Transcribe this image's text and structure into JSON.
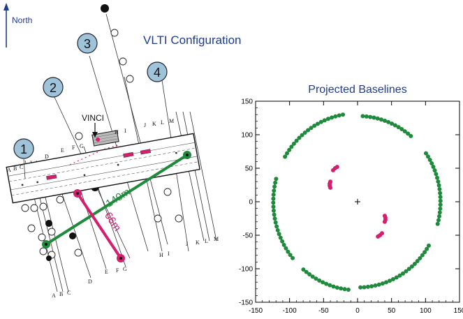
{
  "north_label": "North",
  "title": "VLTI Configuration",
  "vinci_label": "VINCI",
  "chart_title": "Projected Baselines",
  "baseline_long": "140m",
  "baseline_short": "66m",
  "unit_numbers": [
    "1",
    "2",
    "3",
    "4"
  ],
  "rail_letters_top": [
    "A",
    "B",
    "C",
    "D",
    "E",
    "F",
    "G",
    "H",
    "I",
    "J",
    "K",
    "L",
    "M"
  ],
  "rail_letters_bottom": [
    "A",
    "B",
    "C",
    "D",
    "E",
    "F",
    "G",
    "H",
    "I",
    "J",
    "K",
    "L",
    "M"
  ],
  "colors": {
    "title_blue": "#1f3b8c",
    "unit_fill": "#9fc4da",
    "green": "#1f8a3c",
    "magenta": "#d61e6e"
  },
  "chart_data": {
    "type": "scatter",
    "title": "Projected Baselines",
    "xlim": [
      -150,
      150
    ],
    "ylim": [
      -150,
      150
    ],
    "xticks": [
      -150,
      -100,
      -50,
      0,
      50,
      100,
      150
    ],
    "yticks": [
      -150,
      -100,
      -50,
      0,
      50,
      100,
      150
    ],
    "center_marker": [
      0,
      0
    ],
    "series": [
      {
        "color": "green",
        "arcs": [
          {
            "rx": 124,
            "ry": 132,
            "from": 100,
            "to": 150
          },
          {
            "rx": 124,
            "ry": 132,
            "from": 165,
            "to": 220
          },
          {
            "rx": 124,
            "ry": 132,
            "from": 230,
            "to": 265
          },
          {
            "rx": 122,
            "ry": 128,
            "from": 272,
            "to": 330
          },
          {
            "rx": 122,
            "ry": 128,
            "from": 345,
            "to": 395
          },
          {
            "rx": 122,
            "ry": 128,
            "from": 410,
            "to": 448
          }
        ]
      },
      {
        "color": "magenta",
        "points": [
          [
            -30,
            52
          ],
          [
            -33,
            50
          ],
          [
            -36,
            47
          ],
          [
            -40,
            30
          ],
          [
            -41,
            27
          ],
          [
            -41,
            24
          ],
          [
            -40,
            21
          ],
          [
            30,
            -52
          ],
          [
            33,
            -50
          ],
          [
            36,
            -47
          ],
          [
            40,
            -30
          ],
          [
            41,
            -27
          ],
          [
            41,
            -24
          ],
          [
            40,
            -21
          ]
        ]
      }
    ]
  }
}
